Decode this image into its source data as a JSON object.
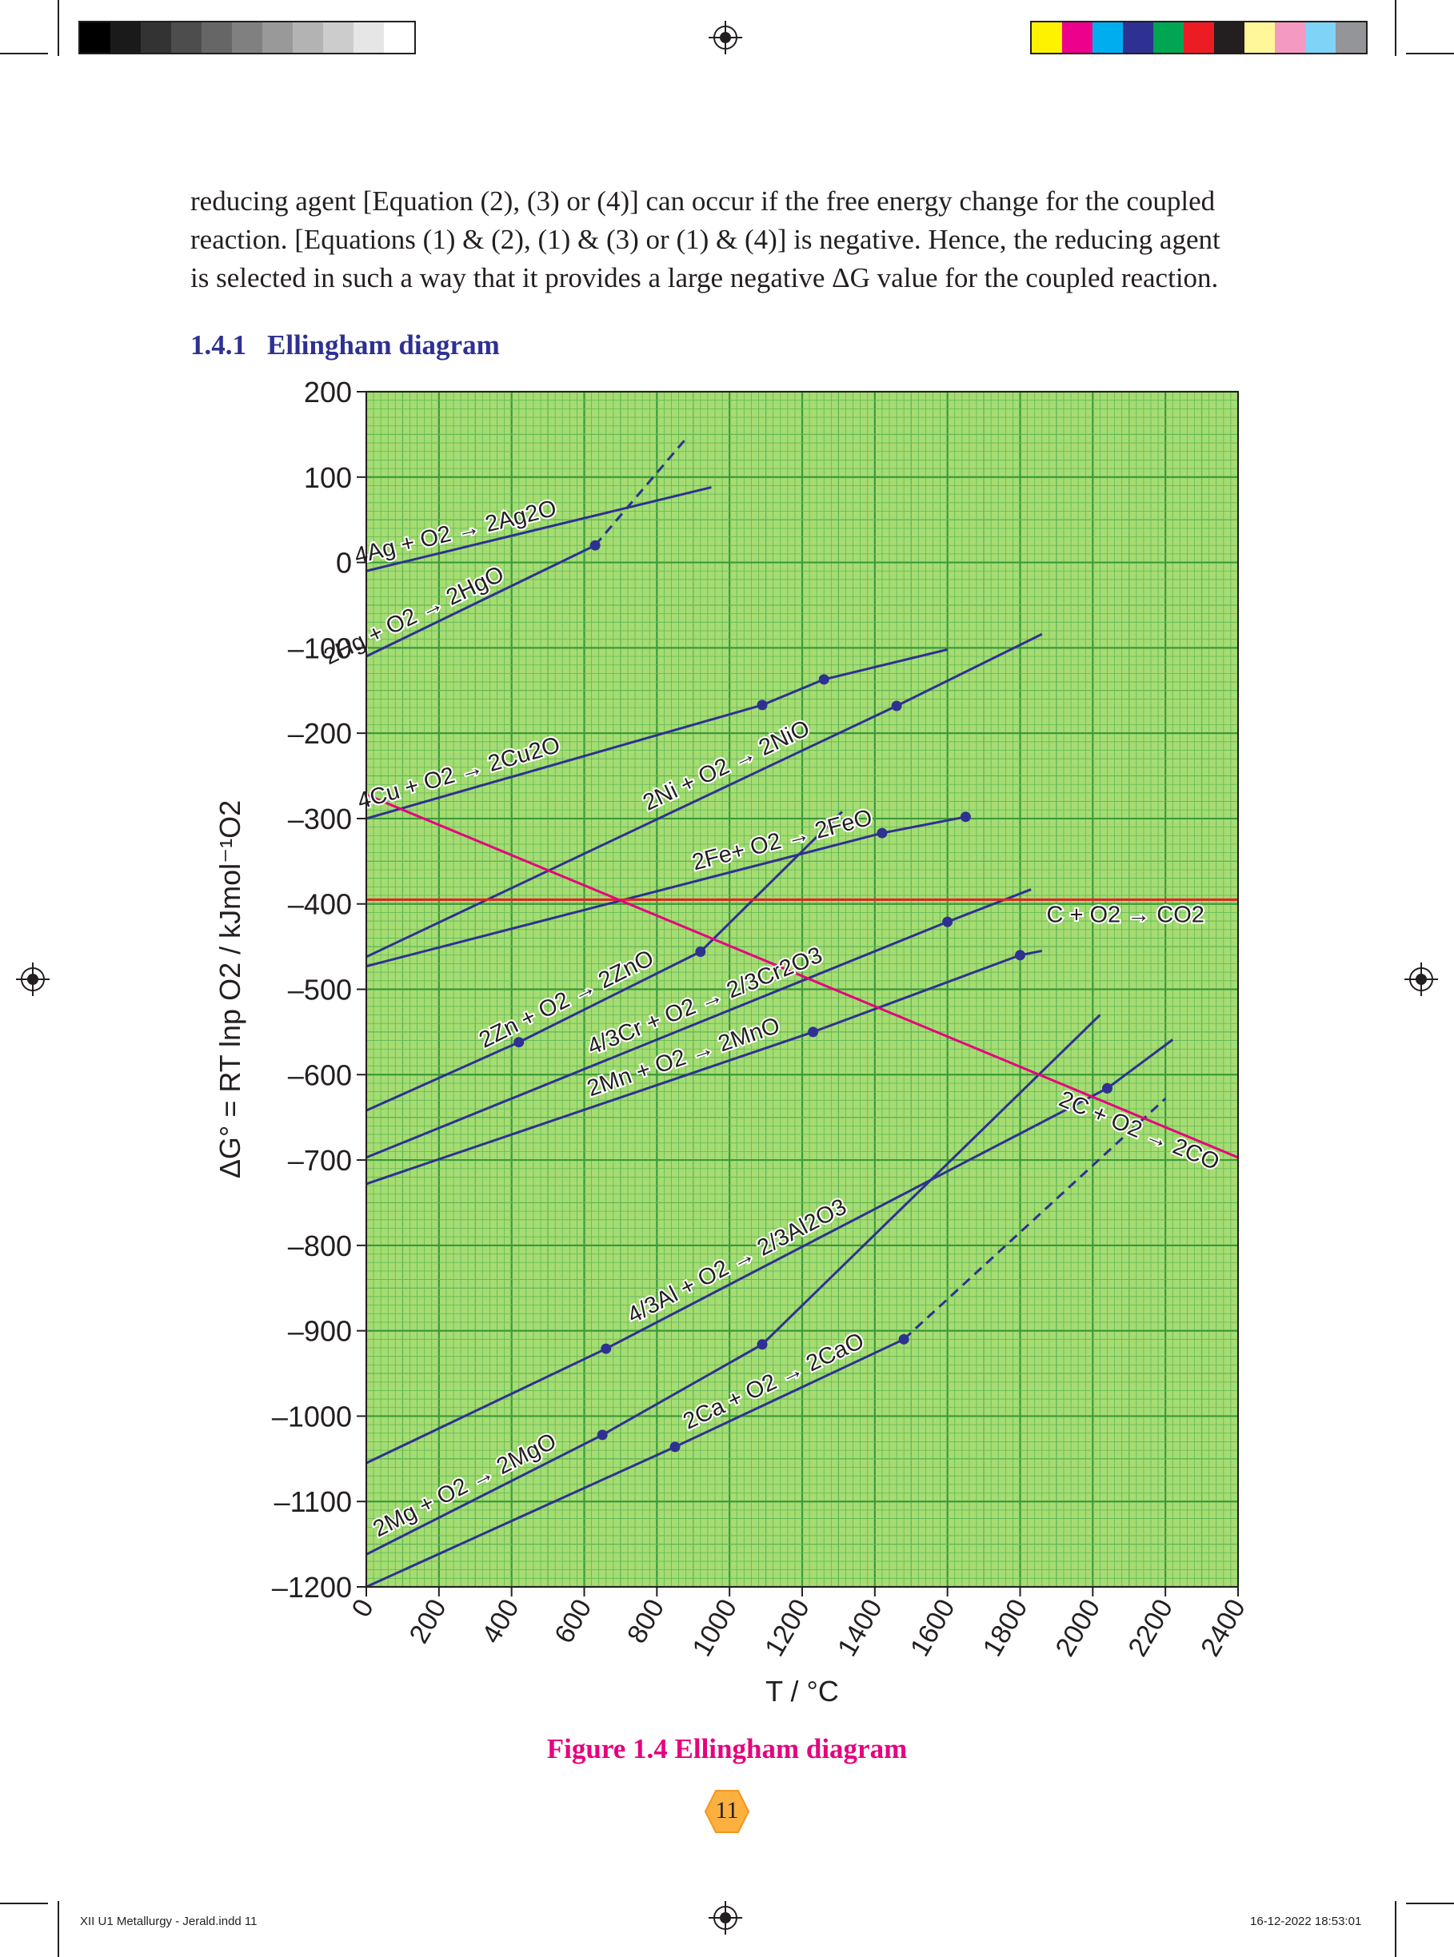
{
  "page": {
    "paragraph_lines": [
      "reducing agent [Equation (2), (3) or (4)] can occur if the free energy change for the coupled",
      "reaction. [Equations (1) & (2), (1) & (3) or (1) & (4)] is negative. Hence, the reducing agent",
      "is selected  in such a way that it provides a large negative ΔG value for the coupled reaction."
    ],
    "section_number": "1.4.1",
    "section_title": "Ellingham diagram",
    "figure_caption": "Figure 1.4 Ellingham diagram",
    "page_number": "11",
    "slug_left": "XII U1 Metallurgy - Jerald.indd   11",
    "slug_right": "16-12-2022   18:53:01",
    "colors": {
      "heading_blue": "#2e3192",
      "caption_magenta": "#e6007e",
      "grid_background": "#a6dc72",
      "grid_major": "#3a9a3c",
      "line_blue": "#2e3192",
      "co_line_magenta": "#e6007e",
      "co2_line_red": "#ed1c24",
      "page_badge": "#fbb040"
    },
    "color_bar": [
      "#fff200",
      "#ec008c",
      "#00aeef",
      "#2e3192",
      "#00a651",
      "#ed1c24",
      "#231f20",
      "#fff799",
      "#f49ac1",
      "#7fd3f7",
      "#939598"
    ],
    "gray_bar": [
      "#000000",
      "#1a1a1a",
      "#333333",
      "#4d4d4d",
      "#666666",
      "#808080",
      "#999999",
      "#b3b3b3",
      "#cccccc",
      "#e6e6e6",
      "#ffffff"
    ]
  },
  "chart_data": {
    "type": "line",
    "title": "",
    "xlabel": "T / °C",
    "ylabel": "ΔG° = RT lnp O2 / kJmol⁻¹O2",
    "xlim": [
      0,
      2400
    ],
    "ylim": [
      -1200,
      200
    ],
    "grid": true,
    "x_ticks": [
      0,
      200,
      400,
      600,
      800,
      1000,
      1200,
      1400,
      1600,
      1800,
      2000,
      2200,
      2400
    ],
    "x_tick_labels": [
      "0",
      "200",
      "400",
      "600",
      "800",
      "1000",
      "1200",
      "1400",
      "1600",
      "1800",
      "2000",
      "2200",
      "2400"
    ],
    "y_ticks": [
      200,
      100,
      0,
      -100,
      -200,
      -300,
      -400,
      -500,
      -600,
      -700,
      -800,
      -900,
      -1000,
      -1100,
      -1200
    ],
    "y_tick_labels": [
      "200",
      "100",
      "0",
      "–100",
      "–200",
      "–300",
      "–400",
      "–500",
      "–600",
      "–700",
      "–800",
      "–900",
      "–1000",
      "–1100",
      "–1200"
    ],
    "series": [
      {
        "name": "4Ag + O2 → 2Ag2O",
        "color": "#2e3192",
        "x": [
          0,
          950
        ],
        "y": [
          -10,
          88
        ],
        "markers": []
      },
      {
        "name": "2Hg + O2 → 2HgO",
        "color": "#2e3192",
        "x": [
          0,
          630
        ],
        "y": [
          -110,
          20
        ],
        "dashed": {
          "x": [
            630,
            880
          ],
          "y": [
            20,
            145
          ]
        },
        "markers": [
          [
            630,
            20
          ]
        ]
      },
      {
        "name": "4Cu + O2 → 2Cu2O",
        "color": "#2e3192",
        "x": [
          0,
          1090,
          1260,
          1600
        ],
        "y": [
          -300,
          -167,
          -137,
          -102
        ],
        "markers": [
          [
            1090,
            -167
          ],
          [
            1260,
            -137
          ]
        ]
      },
      {
        "name": "2Ni + O2 → 2NiO",
        "color": "#2e3192",
        "x": [
          0,
          1460,
          1860
        ],
        "y": [
          -462,
          -168,
          -84
        ],
        "markers": [
          [
            1460,
            -168
          ]
        ]
      },
      {
        "name": "2Fe+ O2 → 2FeO",
        "color": "#2e3192",
        "x": [
          0,
          1420,
          1650
        ],
        "y": [
          -473,
          -317,
          -298
        ],
        "markers": [
          [
            1420,
            -317
          ],
          [
            1650,
            -298
          ]
        ]
      },
      {
        "name": "2Zn + O2 → 2ZnO",
        "color": "#2e3192",
        "x": [
          0,
          420,
          920,
          1310
        ],
        "y": [
          -642,
          -562,
          -456,
          -292
        ],
        "markers": [
          [
            420,
            -562
          ],
          [
            920,
            -456
          ]
        ]
      },
      {
        "name": "4/3Cr + O2 → 2/3Cr2O3",
        "color": "#2e3192",
        "x": [
          0,
          1600,
          1830
        ],
        "y": [
          -697,
          -421,
          -383
        ],
        "markers": [
          [
            1600,
            -421
          ]
        ]
      },
      {
        "name": "2Mn + O2 → 2MnO",
        "color": "#2e3192",
        "x": [
          0,
          1230,
          1800,
          1860
        ],
        "y": [
          -728,
          -550,
          -460,
          -455
        ],
        "markers": [
          [
            1230,
            -550
          ],
          [
            1800,
            -460
          ]
        ]
      },
      {
        "name": "4/3Al + O2 → 2/3Al2O3",
        "color": "#2e3192",
        "x": [
          0,
          660,
          2040,
          2220
        ],
        "y": [
          -1055,
          -921,
          -616,
          -559
        ],
        "markers": [
          [
            660,
            -921
          ],
          [
            2040,
            -616
          ]
        ]
      },
      {
        "name": "2Mg + O2 → 2MgO",
        "color": "#2e3192",
        "x": [
          0,
          650,
          1090,
          2020
        ],
        "y": [
          -1162,
          -1022,
          -916,
          -530
        ],
        "markers": [
          [
            650,
            -1022
          ],
          [
            1090,
            -916
          ]
        ]
      },
      {
        "name": "2Ca + O2 → 2CaO",
        "color": "#2e3192",
        "x": [
          0,
          850,
          1480
        ],
        "y": [
          -1200,
          -1036,
          -910
        ],
        "dashed": {
          "x": [
            1480,
            2200
          ],
          "y": [
            -910,
            -628
          ]
        },
        "markers": [
          [
            850,
            -1036
          ],
          [
            1480,
            -910
          ]
        ]
      },
      {
        "name": "C + O2 → CO2",
        "color": "#ed1c24",
        "x": [
          0,
          2400
        ],
        "y": [
          -395,
          -395
        ],
        "markers": []
      },
      {
        "name": "2C + O2 → 2CO",
        "color": "#e6007e",
        "x": [
          0,
          2400
        ],
        "y": [
          -272,
          -697
        ],
        "markers": []
      }
    ]
  }
}
